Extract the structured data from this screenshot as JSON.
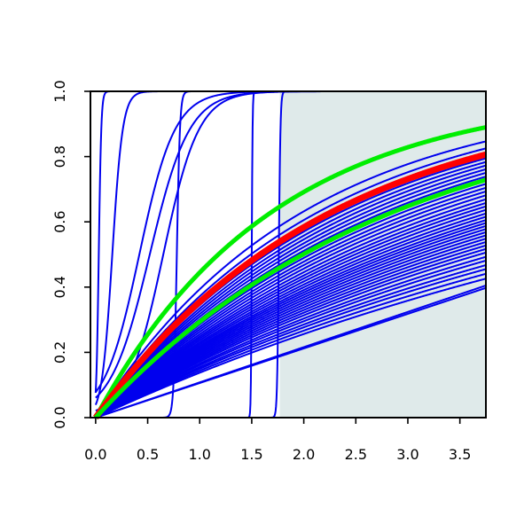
{
  "chart_data": {
    "type": "line",
    "xlim": [
      -0.05,
      3.75
    ],
    "ylim": [
      0.0,
      1.0
    ],
    "x_ticks": [
      {
        "value": 0.0,
        "label": "0.0"
      },
      {
        "value": 0.5,
        "label": "0.5"
      },
      {
        "value": 1.0,
        "label": "1.0"
      },
      {
        "value": 1.5,
        "label": "1.5"
      },
      {
        "value": 2.0,
        "label": "2.0"
      },
      {
        "value": 2.5,
        "label": "2.5"
      },
      {
        "value": 3.0,
        "label": "3.0"
      },
      {
        "value": 3.5,
        "label": "3.5"
      }
    ],
    "y_ticks": [
      {
        "value": 0.0,
        "label": "0.0"
      },
      {
        "value": 0.2,
        "label": "0.2"
      },
      {
        "value": 0.4,
        "label": "0.4"
      },
      {
        "value": 0.6,
        "label": "0.6"
      },
      {
        "value": 0.8,
        "label": "0.8"
      },
      {
        "value": 1.0,
        "label": "1.0"
      }
    ],
    "shaded_region": {
      "x": [
        1.77,
        3.75
      ],
      "y": [
        0.0,
        1.0
      ],
      "color": "#dfeaea"
    },
    "colors": {
      "background_curves": "#0000ee",
      "highlight": "#ff0000",
      "band": "#00ee00"
    },
    "background_curve_groups": [
      {
        "kind": "exp",
        "rates": [
          0.148,
          0.155,
          0.162,
          0.168,
          0.175,
          0.181,
          0.188,
          0.194,
          0.2,
          0.206,
          0.212,
          0.218,
          0.224,
          0.23,
          0.236,
          0.242,
          0.248,
          0.255,
          0.262,
          0.27,
          0.278,
          0.286,
          0.295,
          0.305,
          0.315,
          0.325,
          0.336,
          0.347,
          0.358,
          0.37,
          0.382,
          0.395,
          0.408,
          0.422,
          0.44,
          0.465,
          0.5
        ]
      },
      {
        "kind": "linear",
        "slopes": [
          0.106,
          0.108
        ]
      },
      {
        "kind": "logistic",
        "params": [
          [
            0.03,
            0.012
          ],
          [
            0.16,
            0.05
          ],
          [
            0.42,
            0.17
          ],
          [
            0.52,
            0.19
          ],
          [
            0.65,
            0.17
          ],
          [
            0.78,
            0.015
          ],
          [
            1.5,
            0.004
          ],
          [
            1.76,
            0.008
          ]
        ]
      }
    ],
    "series": [
      {
        "kind": "exp",
        "rate": 0.588,
        "color": "#00ee00",
        "width": 5
      },
      {
        "kind": "exp",
        "rate": 0.438,
        "color": "#ff0000",
        "width": 7
      },
      {
        "kind": "exp",
        "rate": 0.348,
        "color": "#00ee00",
        "width": 5
      }
    ]
  }
}
